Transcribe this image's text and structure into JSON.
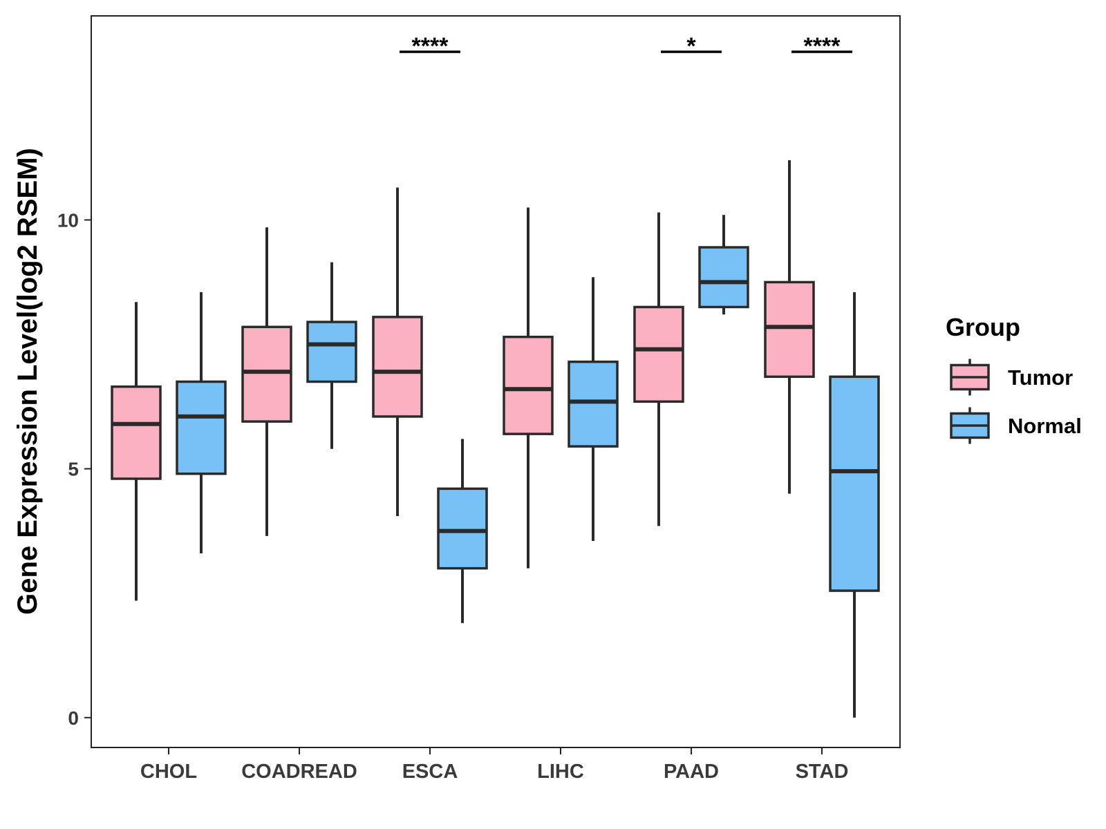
{
  "colors": {
    "tumor": "#FBB1C1",
    "normal": "#77C1F7",
    "outline": "#2a2a2a",
    "panel_border": "#222222",
    "background": "#ffffff"
  },
  "chart_data": {
    "type": "boxplot",
    "title": "",
    "xlabel": "",
    "ylabel": "Gene Expression Level(log2 RSEM)",
    "ylim": [
      -0.6,
      14.1
    ],
    "yticks": [
      0,
      5,
      10
    ],
    "ytick_labels": [
      "0",
      "5",
      "10"
    ],
    "grid": false,
    "legend": {
      "title": "Group",
      "position": "right",
      "entries": [
        "Tumor",
        "Normal"
      ]
    },
    "categories": [
      "CHOL",
      "COADREAD",
      "ESCA",
      "LIHC",
      "PAAD",
      "STAD"
    ],
    "series": [
      {
        "name": "Tumor",
        "color_key": "tumor",
        "boxes": [
          {
            "whisker_low": 2.35,
            "q1": 4.8,
            "median": 5.9,
            "q3": 6.65,
            "whisker_high": 8.35
          },
          {
            "whisker_low": 3.65,
            "q1": 5.95,
            "median": 6.95,
            "q3": 7.85,
            "whisker_high": 9.85
          },
          {
            "whisker_low": 4.05,
            "q1": 6.05,
            "median": 6.95,
            "q3": 8.05,
            "whisker_high": 10.65
          },
          {
            "whisker_low": 3.0,
            "q1": 5.7,
            "median": 6.6,
            "q3": 7.65,
            "whisker_high": 10.25
          },
          {
            "whisker_low": 3.85,
            "q1": 6.35,
            "median": 7.4,
            "q3": 8.25,
            "whisker_high": 10.15
          },
          {
            "whisker_low": 4.5,
            "q1": 6.85,
            "median": 7.85,
            "q3": 8.75,
            "whisker_high": 11.2
          }
        ]
      },
      {
        "name": "Normal",
        "color_key": "normal",
        "boxes": [
          {
            "whisker_low": 3.3,
            "q1": 4.9,
            "median": 6.05,
            "q3": 6.75,
            "whisker_high": 8.55
          },
          {
            "whisker_low": 5.4,
            "q1": 6.75,
            "median": 7.5,
            "q3": 7.95,
            "whisker_high": 9.15
          },
          {
            "whisker_low": 1.9,
            "q1": 3.0,
            "median": 3.75,
            "q3": 4.6,
            "whisker_high": 5.6
          },
          {
            "whisker_low": 3.55,
            "q1": 5.45,
            "median": 6.35,
            "q3": 7.15,
            "whisker_high": 8.85
          },
          {
            "whisker_low": 8.1,
            "q1": 8.25,
            "median": 8.75,
            "q3": 9.45,
            "whisker_high": 10.1
          },
          {
            "whisker_low": 0.0,
            "q1": 2.55,
            "median": 4.95,
            "q3": 6.85,
            "whisker_high": 8.55
          }
        ]
      }
    ],
    "significance": [
      {
        "category": "ESCA",
        "label": "****"
      },
      {
        "category": "PAAD",
        "label": "*"
      },
      {
        "category": "STAD",
        "label": "****"
      }
    ]
  }
}
